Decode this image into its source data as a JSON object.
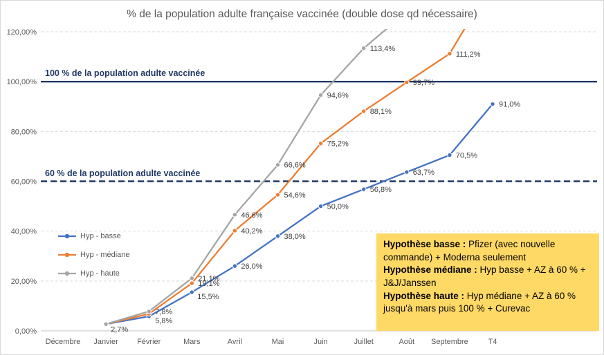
{
  "chart_data": {
    "type": "line",
    "title": "% de la population adulte française vaccinée (double dose qd nécessaire)",
    "categories": [
      "Décembre",
      "Janvier",
      "Février",
      "Mars",
      "Avril",
      "Mai",
      "Juin",
      "Juillet",
      "Août",
      "Septembre",
      "T4"
    ],
    "y_tick_labels": [
      "0,00%",
      "20,00%",
      "40,00%",
      "60,00%",
      "80,00%",
      "100,00%",
      "120,00%"
    ],
    "ylim": [
      0,
      120
    ],
    "grid": "horizontal-dashed",
    "legend_position": "middle-left",
    "series": [
      {
        "name": "Hyp - basse",
        "color": "#4472C4",
        "values": [
          null,
          2.7,
          5.8,
          15.5,
          26.0,
          38.0,
          50.0,
          56.8,
          63.7,
          70.5,
          91.0
        ],
        "labels": [
          null,
          "2,7%",
          "5,8%",
          "15,5%",
          "26,0%",
          "38,0%",
          "50,0%",
          "56,8%",
          "63,7%",
          "70,5%",
          "91,0%"
        ],
        "label_offsets": {
          "1": [
            7,
            11
          ],
          "2": [
            9,
            10
          ],
          "3": [
            8,
            10
          ]
        }
      },
      {
        "name": "Hyp - médiane",
        "color": "#ED7D31",
        "values": [
          null,
          2.7,
          6.8,
          19.1,
          40.2,
          54.6,
          75.2,
          88.1,
          99.7,
          111.2,
          140
        ],
        "labels": [
          null,
          null,
          null,
          "19,1%",
          "40,2%",
          "54,6%",
          "75,2%",
          "88,1%",
          "99,7%",
          "111,2%",
          null
        ],
        "label_offsets": {}
      },
      {
        "name": "Hyp - haute",
        "color": "#A5A5A5",
        "values": [
          null,
          2.7,
          7.8,
          21.1,
          46.6,
          66.6,
          94.6,
          113.4,
          128,
          null,
          null
        ],
        "labels": [
          null,
          null,
          "7,8%",
          "21,1%",
          "46,6%",
          "66,6%",
          "94,6%",
          "113,4%",
          null,
          null,
          null
        ],
        "label_offsets": {}
      }
    ],
    "reference_lines": [
      {
        "value": 100,
        "style": "solid",
        "color": "#1F3864",
        "label": "100 % de la population adulte vaccinée"
      },
      {
        "value": 60,
        "style": "dashed",
        "color": "#1F3864",
        "label": "60 % de la population adulte vaccinée"
      }
    ]
  },
  "annotation_box": {
    "bg_color": "#FFD965",
    "lines": [
      {
        "bold": "Hypothèse basse :",
        "text": " Pfizer (avec nouvelle commande) + Moderna seulement"
      },
      {
        "bold": "Hypothèse médiane :",
        "text": "  Hyp basse + AZ à 60 % + J&J/Janssen"
      },
      {
        "bold": "Hypothèse haute :",
        "text": " Hyp médiane + AZ à 60 % jusqu'à mars puis 100 % + Curevac"
      }
    ]
  }
}
